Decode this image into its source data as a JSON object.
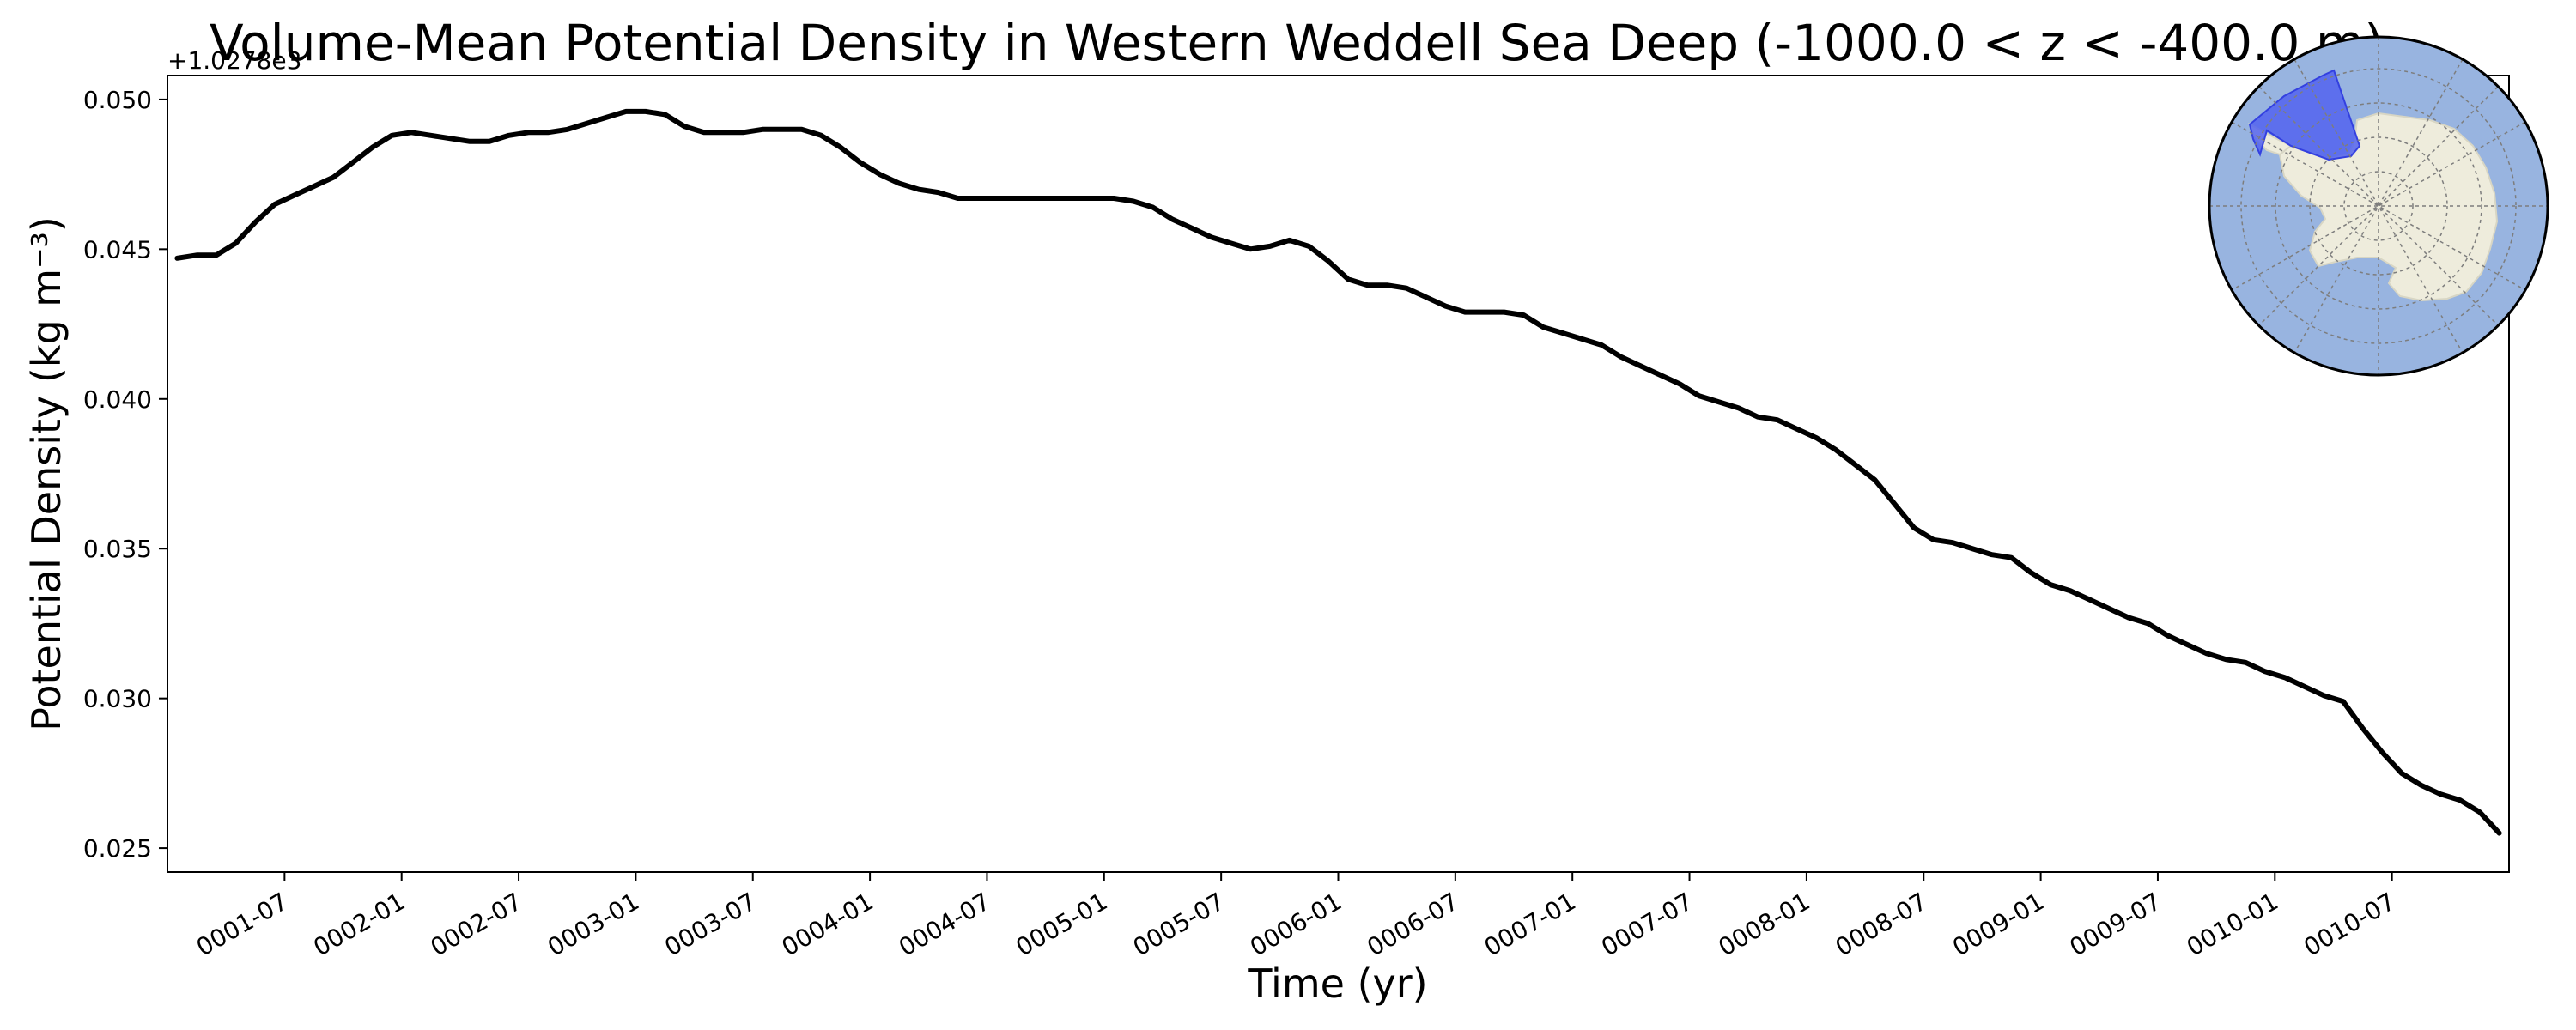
{
  "chart_data": {
    "type": "line",
    "title": "Volume-Mean Potential Density in Western Weddell Sea Deep (-1000.0 < z < -400.0 m)",
    "xlabel": "Time (yr)",
    "ylabel": "Potential Density (kg m⁻³)",
    "y_offset_label": "+1.0278e3",
    "xlim": [
      "0001-01",
      "0011-01"
    ],
    "ylim": [
      0.0242,
      0.0508
    ],
    "x_ticks": [
      "0001-07",
      "0002-01",
      "0002-07",
      "0003-01",
      "0003-07",
      "0004-01",
      "0004-07",
      "0005-01",
      "0005-07",
      "0006-01",
      "0006-07",
      "0007-01",
      "0007-07",
      "0008-01",
      "0008-07",
      "0009-01",
      "0009-07",
      "0010-01",
      "0010-07"
    ],
    "y_ticks": [
      0.025,
      0.03,
      0.035,
      0.04,
      0.045,
      0.05
    ],
    "y_tick_labels": [
      "0.025",
      "0.030",
      "0.035",
      "0.040",
      "0.045",
      "0.050"
    ],
    "grid": false,
    "line_color": "#000000",
    "inset_map": {
      "region": "Western Weddell Sea",
      "ocean_color": "#98b4e0",
      "land_color": "#eeecdc",
      "region_color": "#5263ef"
    },
    "series": [
      {
        "x": [
          "0001-01",
          "0001-02",
          "0001-03",
          "0001-04",
          "0001-05",
          "0001-06",
          "0001-07",
          "0001-08",
          "0001-09",
          "0001-10",
          "0001-11",
          "0001-12",
          "0002-01",
          "0002-02",
          "0002-03",
          "0002-04",
          "0002-05",
          "0002-06",
          "0002-07",
          "0002-08",
          "0002-09",
          "0002-10",
          "0002-11",
          "0002-12",
          "0003-01",
          "0003-02",
          "0003-03",
          "0003-04",
          "0003-05",
          "0003-06",
          "0003-07",
          "0003-08",
          "0003-09",
          "0003-10",
          "0003-11",
          "0003-12",
          "0004-01",
          "0004-02",
          "0004-03",
          "0004-04",
          "0004-05",
          "0004-06",
          "0004-07",
          "0004-08",
          "0004-09",
          "0004-10",
          "0004-11",
          "0004-12",
          "0005-01",
          "0005-02",
          "0005-03",
          "0005-04",
          "0005-05",
          "0005-06",
          "0005-07",
          "0005-08",
          "0005-09",
          "0005-10",
          "0005-11",
          "0005-12",
          "0006-01",
          "0006-02",
          "0006-03",
          "0006-04",
          "0006-05",
          "0006-06",
          "0006-07",
          "0006-08",
          "0006-09",
          "0006-10",
          "0006-11",
          "0006-12",
          "0007-01",
          "0007-02",
          "0007-03",
          "0007-04",
          "0007-05",
          "0007-06",
          "0007-07",
          "0007-08",
          "0007-09",
          "0007-10",
          "0007-11",
          "0007-12",
          "0008-01",
          "0008-02",
          "0008-03",
          "0008-04",
          "0008-05",
          "0008-06",
          "0008-07",
          "0008-08",
          "0008-09",
          "0008-10",
          "0008-11",
          "0008-12",
          "0009-01",
          "0009-02",
          "0009-03",
          "0009-04",
          "0009-05",
          "0009-06",
          "0009-07",
          "0009-08",
          "0009-09",
          "0009-10",
          "0009-11",
          "0009-12",
          "0010-01",
          "0010-02",
          "0010-03",
          "0010-04",
          "0010-05",
          "0010-06",
          "0010-07",
          "0010-08",
          "0010-09",
          "0010-10",
          "0010-11",
          "0010-12"
        ],
        "y": [
          0.0447,
          0.0448,
          0.0448,
          0.0452,
          0.0459,
          0.0465,
          0.0468,
          0.0471,
          0.0474,
          0.0479,
          0.0484,
          0.0488,
          0.0489,
          0.0488,
          0.0487,
          0.0486,
          0.0486,
          0.0488,
          0.0489,
          0.0489,
          0.049,
          0.0492,
          0.0494,
          0.0496,
          0.0496,
          0.0495,
          0.0491,
          0.0489,
          0.0489,
          0.0489,
          0.049,
          0.049,
          0.049,
          0.0488,
          0.0484,
          0.0479,
          0.0475,
          0.0472,
          0.047,
          0.0469,
          0.0467,
          0.0467,
          0.0467,
          0.0467,
          0.0467,
          0.0467,
          0.0467,
          0.0467,
          0.0467,
          0.0466,
          0.0464,
          0.046,
          0.0457,
          0.0454,
          0.0452,
          0.045,
          0.0451,
          0.0453,
          0.0451,
          0.0446,
          0.044,
          0.0438,
          0.0438,
          0.0437,
          0.0434,
          0.0431,
          0.0429,
          0.0429,
          0.0429,
          0.0428,
          0.0424,
          0.0422,
          0.042,
          0.0418,
          0.0414,
          0.0411,
          0.0408,
          0.0405,
          0.0401,
          0.0399,
          0.0397,
          0.0394,
          0.0393,
          0.039,
          0.0387,
          0.0383,
          0.0378,
          0.0373,
          0.0365,
          0.0357,
          0.0353,
          0.0352,
          0.035,
          0.0348,
          0.0347,
          0.0342,
          0.0338,
          0.0336,
          0.0333,
          0.033,
          0.0327,
          0.0325,
          0.0321,
          0.0318,
          0.0315,
          0.0313,
          0.0312,
          0.0309,
          0.0307,
          0.0304,
          0.0301,
          0.0299,
          0.029,
          0.0282,
          0.0275,
          0.0271,
          0.0268,
          0.0266,
          0.0262,
          0.0255
        ]
      }
    ]
  }
}
